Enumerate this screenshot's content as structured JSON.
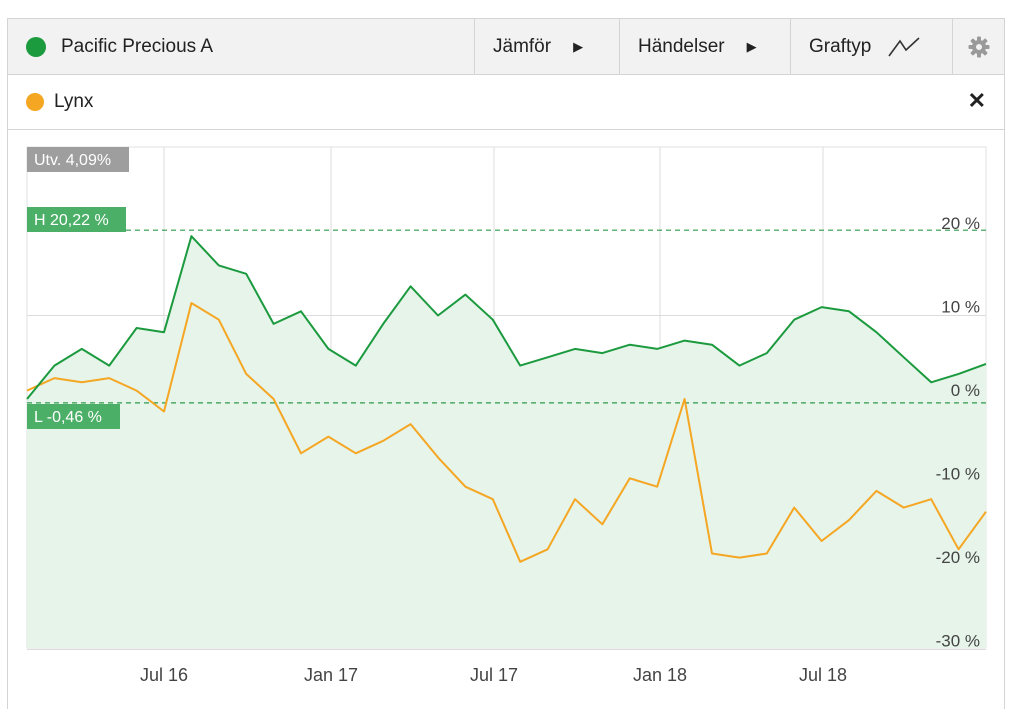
{
  "toolbar": {
    "fund_name": "Pacific Precious A",
    "fund_color": "#1b9a3e",
    "compare_label": "Jämför",
    "events_label": "Händelser",
    "charttype_label": "Graftyp",
    "settings_icon": "gear-icon"
  },
  "comparison": {
    "name": "Lynx",
    "color": "#f5a623",
    "remove_icon": "close-icon"
  },
  "chart_data": {
    "type": "line",
    "x": [
      "2016-01",
      "2016-02",
      "2016-03",
      "2016-04",
      "2016-05",
      "2016-06",
      "2016-07",
      "2016-08",
      "2016-09",
      "2016-10",
      "2016-11",
      "2016-12",
      "2017-01",
      "2017-02",
      "2017-03",
      "2017-04",
      "2017-05",
      "2017-06",
      "2017-07",
      "2017-08",
      "2017-09",
      "2017-10",
      "2017-11",
      "2017-12",
      "2018-01",
      "2018-02",
      "2018-03",
      "2018-04",
      "2018-05",
      "2018-06",
      "2018-07",
      "2018-08",
      "2018-09",
      "2018-10",
      "2018-11",
      "2018-12"
    ],
    "x_ticks": [
      "Jul 16",
      "Jan 17",
      "Jul 17",
      "Jan 18",
      "Jul 18"
    ],
    "series": [
      {
        "name": "Pacific Precious A",
        "color": "#1b9a3e",
        "values": [
          0.0,
          4.0,
          6.0,
          4.0,
          8.5,
          8.0,
          19.5,
          16.0,
          15.0,
          9.0,
          10.5,
          6.0,
          4.0,
          9.0,
          13.5,
          10.0,
          12.5,
          9.5,
          4.0,
          5.0,
          6.0,
          5.5,
          6.5,
          6.0,
          7.0,
          6.5,
          4.0,
          5.5,
          9.5,
          11.0,
          10.5,
          8.0,
          5.0,
          2.0,
          3.0,
          4.2
        ]
      },
      {
        "name": "Lynx",
        "color": "#f5a623",
        "values": [
          1.0,
          2.5,
          2.0,
          2.5,
          1.0,
          -1.5,
          11.5,
          9.5,
          3.0,
          0.0,
          -6.5,
          -4.5,
          -6.5,
          -5.0,
          -3.0,
          -7.0,
          -10.5,
          -12.0,
          -19.5,
          -18.0,
          -12.0,
          -15.0,
          -9.5,
          -10.5,
          0.0,
          -18.5,
          -19.0,
          -18.5,
          -13.0,
          -17.0,
          -14.5,
          -11.0,
          -13.0,
          -12.0,
          -18.0,
          -13.5
        ]
      }
    ],
    "y_ticks": [
      "20 %",
      "10 %",
      "0 %",
      "-10 %",
      "-20 %",
      "-30 %"
    ],
    "ylim": [
      -30,
      30
    ],
    "high_label": "H 20,22 %",
    "high_value": 20.22,
    "low_label": "L -0,46 %",
    "low_value": -0.46,
    "change_label": "Utv. 4,09%",
    "area_fill": "#e6f4ea",
    "grid": true
  }
}
